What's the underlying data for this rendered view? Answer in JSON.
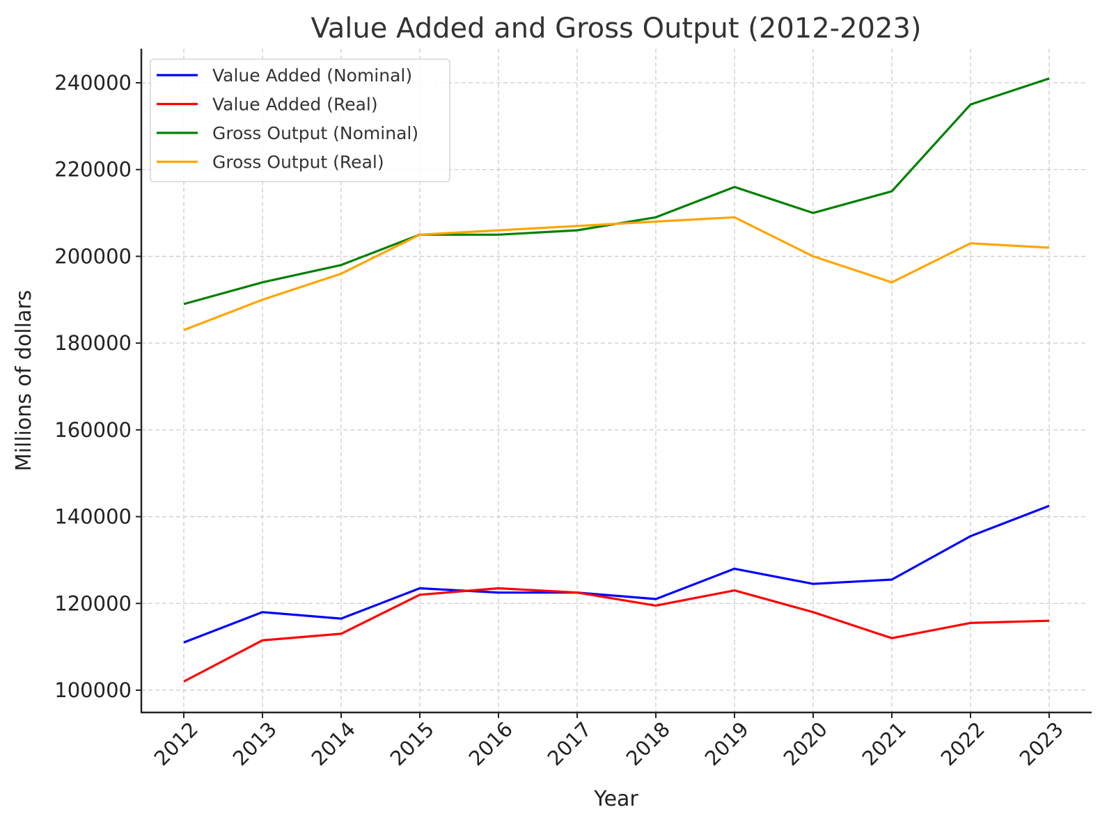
{
  "chart_data": {
    "type": "line",
    "title": "Value Added and Gross Output (2012-2023)",
    "xlabel": "Year",
    "ylabel": "Millions of dollars",
    "x": [
      2012,
      2013,
      2014,
      2015,
      2016,
      2017,
      2018,
      2019,
      2020,
      2021,
      2022,
      2023
    ],
    "x_tick_labels": [
      "2012",
      "2013",
      "2014",
      "2015",
      "2016",
      "2017",
      "2018",
      "2019",
      "2020",
      "2021",
      "2022",
      "2023"
    ],
    "y_ticks": [
      100000,
      120000,
      140000,
      160000,
      180000,
      200000,
      220000,
      240000
    ],
    "y_tick_labels": [
      "100000",
      "120000",
      "140000",
      "160000",
      "180000",
      "200000",
      "220000",
      "240000"
    ],
    "ylim": [
      95200,
      248000
    ],
    "grid": true,
    "legend_position": "top-left",
    "series": [
      {
        "name": "Value Added (Nominal)",
        "color": "#0000ff",
        "values": [
          111000,
          118000,
          116500,
          123500,
          122500,
          122500,
          121000,
          128000,
          124500,
          125500,
          135500,
          142500
        ]
      },
      {
        "name": "Value Added (Real)",
        "color": "#ff0000",
        "values": [
          102000,
          111500,
          113000,
          122000,
          123500,
          122500,
          119500,
          123000,
          118000,
          112000,
          115500,
          116000
        ]
      },
      {
        "name": "Gross Output (Nominal)",
        "color": "#008000",
        "values": [
          189000,
          194000,
          198000,
          205000,
          205000,
          206000,
          209000,
          216000,
          210000,
          215000,
          235000,
          241000
        ]
      },
      {
        "name": "Gross Output (Real)",
        "color": "#ffa500",
        "values": [
          183000,
          190000,
          196000,
          205000,
          206000,
          207000,
          208000,
          209000,
          200000,
          194000,
          203000,
          202000
        ]
      }
    ]
  }
}
